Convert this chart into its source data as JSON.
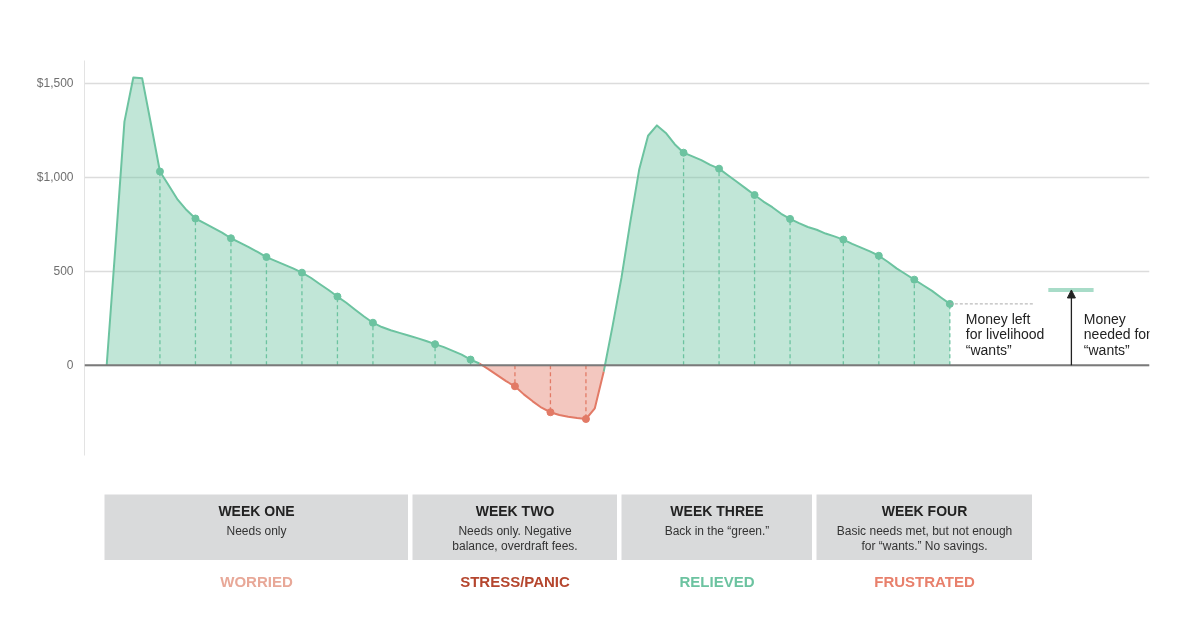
{
  "chart_data": {
    "type": "area",
    "categories": [
      null,
      null,
      null,
      null,
      null,
      null,
      null,
      null,
      null,
      null,
      null,
      null,
      null,
      null,
      null,
      null,
      null,
      null,
      null,
      null,
      null,
      null,
      null,
      null,
      null,
      null,
      null,
      null,
      null,
      null,
      null,
      null,
      null,
      null,
      null,
      null,
      null,
      null,
      null,
      null,
      null,
      null,
      null,
      null,
      null,
      null,
      null,
      null,
      null,
      null,
      null,
      null,
      null,
      null,
      null,
      null,
      null,
      null,
      null,
      null,
      null,
      null,
      null,
      null,
      null,
      null,
      null,
      null,
      null,
      null,
      null,
      null,
      null,
      null,
      null,
      null,
      null,
      null,
      null,
      null,
      null,
      null,
      null,
      null,
      null,
      null,
      null,
      null,
      null,
      null,
      null,
      null,
      null,
      null,
      null,
      null,
      null,
      null,
      null,
      null,
      null,
      null,
      null,
      null,
      null,
      null,
      null,
      null,
      null,
      null,
      null,
      null,
      null,
      null,
      null,
      null,
      null,
      null,
      null,
      null
    ],
    "series": [
      {
        "color": "#6cc3a0",
        "values": [
          null,
          null,
          0,
          640,
          1295,
          1530,
          1525,
          1280,
          1030,
          955,
          880,
          825,
          780,
          755,
          730,
          705,
          675,
          652,
          628,
          602,
          575,
          555,
          535,
          515,
          492,
          465,
          432,
          400,
          365,
          332,
          295,
          259,
          226,
          203,
          186,
          172,
          158,
          144,
          129,
          112,
          96,
          76,
          56,
          30,
          9,
          null,
          null,
          null,
          null,
          null,
          null,
          null,
          null,
          null,
          null,
          null,
          null,
          null,
          -35,
          208,
          464,
          762,
          1040,
          1220,
          1275,
          1235,
          1175,
          1130,
          1110,
          1090,
          1065,
          1045,
          1010,
          975,
          940,
          905,
          870,
          840,
          805,
          778,
          755,
          735,
          720,
          700,
          685,
          668,
          645,
          625,
          605,
          582,
          550,
          515,
          485,
          455,
          425,
          395,
          360,
          326,
          null,
          null,
          null,
          null,
          null,
          null,
          null,
          null,
          null,
          null,
          null,
          null,
          null,
          null,
          null,
          null,
          null,
          null,
          null,
          null,
          null,
          null
        ]
      },
      {
        "color": "#e27a66",
        "values": [
          null,
          null,
          null,
          null,
          null,
          null,
          null,
          null,
          null,
          null,
          null,
          null,
          null,
          null,
          null,
          null,
          null,
          null,
          null,
          null,
          null,
          null,
          null,
          null,
          null,
          null,
          null,
          null,
          null,
          null,
          null,
          null,
          null,
          null,
          null,
          null,
          null,
          null,
          null,
          null,
          null,
          null,
          null,
          null,
          9,
          -21,
          -53,
          -85,
          -112,
          -155,
          -192,
          -226,
          -250,
          -265,
          -274,
          -281,
          -286,
          -229,
          -35,
          null,
          null,
          null,
          null,
          null,
          null,
          null,
          null,
          null,
          null,
          null,
          null,
          null,
          null,
          null,
          null,
          null,
          null,
          null,
          null,
          null,
          null,
          null,
          null,
          null,
          null,
          null,
          null,
          null,
          null,
          null,
          null,
          null,
          null,
          null,
          null,
          null,
          null,
          null,
          null,
          null,
          null,
          null,
          null,
          null,
          null,
          null,
          null,
          null,
          null,
          null,
          null,
          null,
          null,
          null,
          null,
          null,
          null,
          null,
          null,
          null
        ]
      },
      {
        "type": "lollipop",
        "color": "#6cc3a0",
        "marker": "circle",
        "line_style": "dashed",
        "values": [
          null,
          null,
          null,
          null,
          null,
          null,
          null,
          null,
          1030,
          null,
          null,
          null,
          780,
          null,
          null,
          null,
          675,
          null,
          null,
          null,
          575,
          null,
          null,
          null,
          492,
          null,
          null,
          null,
          365,
          null,
          null,
          null,
          226,
          null,
          null,
          null,
          null,
          null,
          null,
          112,
          null,
          null,
          null,
          30,
          null,
          null,
          null,
          null,
          null,
          null,
          null,
          null,
          null,
          null,
          null,
          null,
          null,
          null,
          null,
          null,
          null,
          null,
          null,
          null,
          null,
          null,
          null,
          1130,
          null,
          null,
          null,
          1045,
          null,
          null,
          null,
          905,
          null,
          null,
          null,
          778,
          null,
          null,
          null,
          null,
          null,
          668,
          null,
          null,
          null,
          582,
          null,
          null,
          null,
          455,
          null,
          null,
          null,
          326,
          null,
          null,
          null,
          null,
          null,
          null,
          null,
          null,
          null,
          null,
          null,
          null,
          null,
          null,
          null,
          null,
          null,
          null,
          null,
          null,
          null,
          null
        ]
      },
      {
        "type": "lollipop",
        "color": "#e27a66",
        "marker": "circle",
        "line_style": "dashed",
        "values": [
          null,
          null,
          null,
          null,
          null,
          null,
          null,
          null,
          null,
          null,
          null,
          null,
          null,
          null,
          null,
          null,
          null,
          null,
          null,
          null,
          null,
          null,
          null,
          null,
          null,
          null,
          null,
          null,
          null,
          null,
          null,
          null,
          null,
          null,
          null,
          null,
          null,
          null,
          null,
          null,
          null,
          null,
          null,
          null,
          null,
          null,
          null,
          null,
          -112,
          null,
          null,
          null,
          -250,
          null,
          null,
          null,
          -286,
          null,
          null,
          null,
          null,
          null,
          null,
          null,
          null,
          null,
          null,
          null,
          null,
          null,
          null,
          null,
          null,
          null,
          null,
          null,
          null,
          null,
          null,
          null,
          null,
          null,
          null,
          null,
          null,
          null,
          null,
          null,
          null,
          null,
          null,
          null,
          null,
          null,
          null,
          null,
          null,
          null,
          null,
          null,
          null,
          null,
          null,
          null,
          null,
          null,
          null,
          null,
          null,
          null,
          null,
          null,
          null,
          null,
          null,
          null,
          null,
          null,
          null,
          null
        ]
      }
    ],
    "ylim": [
      -480,
      1620
    ],
    "yticks": [
      0,
      500,
      {
        "value": 1000,
        "label": "$1,000"
      },
      {
        "value": 1500,
        "label": "$1,500"
      }
    ],
    "grid": "y",
    "tick_labels": "y",
    "ref_lines": [
      {
        "axis": "y",
        "value": 0,
        "color": "#7a7a7a"
      },
      {
        "axis": "y",
        "value": 400,
        "label": "Money needed for “wants”",
        "color": "#a8dcc8"
      }
    ],
    "annotations": [
      "Money left for livelihood “wants”",
      "WEEK ONE",
      "Needs only",
      "WORRIED",
      "WEEK TWO",
      "Needs only. Negative balance, overdraft fees.",
      "STRESS/PANIC",
      "WEEK THREE",
      "Back in the “green.”",
      "RELIEVED",
      "WEEK FOUR",
      "Basic needs met, but not enough for “wants.” No savings.",
      "FRUSTRATED"
    ]
  }
}
